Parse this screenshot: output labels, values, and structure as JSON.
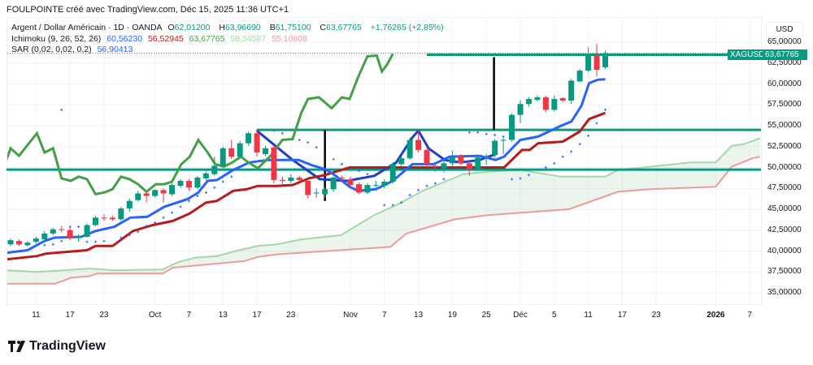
{
  "header": {
    "title": "FOULPOINTE créé avec TradingView.com, Déc 15, 2025 11:36 UTC+1"
  },
  "legend": {
    "symbol": "Argent / Dollar Américain · 1D · OANDA",
    "o_label": "O",
    "o": "62,01200",
    "h_label": "H",
    "h": "63,96690",
    "b_label": "B",
    "b": "61,75100",
    "c_label": "C",
    "c": "63,67765",
    "change": "+1,76265 (+2,85%)",
    "ichimoku_label": "Ichimoku (9, 26, 52, 26)",
    "ichimoku_values": [
      "60,56230",
      "56,52945",
      "63,67765",
      "58,54587",
      "55,10808"
    ],
    "sar_label": "SAR (0,02, 0,02, 0,2)",
    "sar_value": "56,90413"
  },
  "axis": {
    "currency": "USD",
    "price_ticks": [
      "65,00000",
      "62,50000",
      "60,00000",
      "57,50000",
      "55,00000",
      "52,50000",
      "50,00000",
      "47,50000",
      "45,00000",
      "42,50000",
      "40,00000",
      "37,50000",
      "35,00000"
    ],
    "time_ticks": [
      {
        "label": "11",
        "bar": 3
      },
      {
        "label": "17",
        "bar": 7
      },
      {
        "label": "23",
        "bar": 11
      },
      {
        "label": "Oct",
        "bar": 17
      },
      {
        "label": "7",
        "bar": 21
      },
      {
        "label": "13",
        "bar": 25
      },
      {
        "label": "17",
        "bar": 29
      },
      {
        "label": "23",
        "bar": 33
      },
      {
        "label": "Nov",
        "bar": 40
      },
      {
        "label": "7",
        "bar": 44
      },
      {
        "label": "13",
        "bar": 48
      },
      {
        "label": "19",
        "bar": 52
      },
      {
        "label": "25",
        "bar": 56
      },
      {
        "label": "Déc",
        "bar": 60
      },
      {
        "label": "5",
        "bar": 64
      },
      {
        "label": "11",
        "bar": 68
      },
      {
        "label": "17",
        "bar": 72
      },
      {
        "label": "23",
        "bar": 76
      },
      {
        "label": "2026",
        "bar": 83
      },
      {
        "label": "7",
        "bar": 87
      }
    ],
    "symbol_tag": "XAGUSD",
    "last_price": "63,67765"
  },
  "colors": {
    "up": "#089981",
    "down": "#f23645",
    "tenkan": "#2962ff",
    "kijun": "#b71c1c",
    "chikou": "#43a047",
    "spanA": "#a5d6a7",
    "spanB": "#ef9a9a",
    "drawing": "#089981",
    "arc": "#1e40c8",
    "sar": "#2962ff"
  },
  "chart_data": {
    "type": "candlestick",
    "ylim": [
      33.8,
      66.5
    ],
    "last_close": 63.67765,
    "candles_ohlc": [
      [
        40.8,
        41.5,
        40.6,
        41.3
      ],
      [
        41.2,
        41.4,
        40.6,
        40.8
      ],
      [
        40.7,
        41.2,
        40.5,
        41.0
      ],
      [
        41.1,
        41.7,
        40.9,
        41.5
      ],
      [
        41.4,
        42.4,
        41.2,
        42.1
      ],
      [
        42.1,
        42.8,
        41.9,
        42.6
      ],
      [
        42.6,
        43.0,
        42.2,
        42.5
      ],
      [
        42.5,
        42.8,
        41.3,
        41.6
      ],
      [
        41.6,
        42.0,
        41.1,
        41.7
      ],
      [
        41.7,
        43.3,
        41.6,
        43.1
      ],
      [
        43.1,
        44.2,
        43.0,
        44.0
      ],
      [
        44.0,
        44.4,
        43.6,
        43.9
      ],
      [
        44.0,
        44.2,
        43.6,
        43.8
      ],
      [
        43.8,
        45.3,
        43.6,
        45.1
      ],
      [
        45.1,
        46.3,
        44.7,
        46.0
      ],
      [
        46.1,
        47.2,
        45.9,
        46.9
      ],
      [
        46.9,
        47.1,
        45.8,
        46.6
      ],
      [
        46.6,
        47.4,
        46.4,
        47.3
      ],
      [
        47.3,
        47.5,
        45.8,
        46.9
      ],
      [
        46.8,
        48.1,
        46.6,
        47.9
      ],
      [
        47.8,
        48.6,
        47.6,
        48.4
      ],
      [
        48.4,
        48.6,
        47.2,
        47.6
      ],
      [
        47.6,
        49.0,
        47.4,
        48.8
      ],
      [
        48.7,
        49.5,
        48.5,
        49.3
      ],
      [
        49.2,
        51.3,
        49.0,
        50.2
      ],
      [
        50.2,
        52.5,
        50.0,
        52.3
      ],
      [
        52.3,
        53.3,
        51.0,
        51.3
      ],
      [
        51.3,
        53.2,
        51.1,
        52.9
      ],
      [
        52.9,
        54.3,
        52.6,
        54.1
      ],
      [
        54.1,
        54.5,
        51.3,
        51.8
      ],
      [
        51.6,
        52.6,
        51.4,
        52.3
      ],
      [
        52.4,
        52.6,
        48.1,
        48.5
      ],
      [
        48.5,
        48.9,
        47.9,
        48.4
      ],
      [
        48.4,
        49.2,
        48.1,
        48.8
      ],
      [
        48.8,
        49.0,
        48.3,
        48.5
      ],
      [
        48.4,
        48.6,
        46.3,
        46.7
      ],
      [
        46.9,
        47.5,
        46.4,
        47.0
      ],
      [
        46.8,
        47.6,
        46.3,
        47.4
      ],
      [
        47.4,
        48.9,
        47.1,
        48.8
      ],
      [
        48.8,
        49.0,
        48.4,
        48.7
      ],
      [
        48.6,
        48.9,
        47.7,
        47.9
      ],
      [
        48.0,
        48.2,
        46.8,
        47.0
      ],
      [
        47.0,
        48.1,
        46.8,
        47.9
      ],
      [
        47.8,
        48.4,
        47.6,
        47.9
      ],
      [
        47.8,
        48.6,
        47.5,
        48.3
      ],
      [
        48.3,
        50.6,
        48.1,
        50.4
      ],
      [
        50.4,
        51.3,
        50.1,
        51.1
      ],
      [
        51.1,
        53.6,
        50.9,
        53.3
      ],
      [
        53.3,
        54.4,
        51.8,
        52.1
      ],
      [
        52.1,
        52.4,
        50.0,
        50.4
      ],
      [
        50.2,
        50.6,
        49.5,
        50.1
      ],
      [
        49.9,
        50.8,
        49.4,
        50.5
      ],
      [
        50.5,
        52.0,
        50.2,
        51.2
      ],
      [
        51.4,
        51.6,
        50.3,
        50.5
      ],
      [
        50.5,
        50.8,
        49.0,
        49.8
      ],
      [
        49.8,
        51.4,
        49.6,
        51.2
      ],
      [
        51.2,
        51.6,
        50.3,
        51.3
      ],
      [
        51.5,
        53.4,
        51.2,
        53.2
      ],
      [
        53.2,
        53.6,
        51.6,
        53.3
      ],
      [
        53.3,
        56.5,
        53.1,
        56.3
      ],
      [
        56.3,
        58.1,
        55.3,
        57.6
      ],
      [
        57.6,
        58.4,
        57.3,
        58.2
      ],
      [
        58.1,
        58.6,
        57.9,
        58.4
      ],
      [
        58.4,
        58.6,
        56.6,
        56.9
      ],
      [
        56.9,
        58.6,
        56.7,
        58.2
      ],
      [
        58.3,
        58.4,
        57.8,
        58.0
      ],
      [
        58.0,
        60.6,
        57.6,
        60.4
      ],
      [
        60.3,
        61.8,
        60.2,
        61.6
      ],
      [
        61.6,
        64.4,
        61.4,
        63.4
      ],
      [
        63.4,
        64.8,
        60.9,
        61.7
      ],
      [
        62.0,
        64.0,
        61.8,
        63.7
      ]
    ],
    "tenkan": [
      [
        -0.5,
        39.8
      ],
      [
        2,
        40.1
      ],
      [
        4,
        41.2
      ],
      [
        5.2,
        41.6
      ],
      [
        8.3,
        41.7
      ],
      [
        10,
        42.4
      ],
      [
        12.2,
        42.9
      ],
      [
        14.1,
        44.0
      ],
      [
        16.1,
        44.1
      ],
      [
        18.1,
        45.3
      ],
      [
        20.8,
        46.2
      ],
      [
        22.1,
        47.0
      ],
      [
        23.2,
        48.4
      ],
      [
        24.3,
        48.5
      ],
      [
        26.2,
        49.7
      ],
      [
        28.1,
        50.6
      ],
      [
        30.3,
        50.9
      ],
      [
        33.9,
        50.9
      ],
      [
        35.4,
        50.3
      ],
      [
        37,
        49.8
      ],
      [
        38,
        49.2
      ],
      [
        39.9,
        47.7
      ],
      [
        40.9,
        47.2
      ],
      [
        43,
        47.4
      ],
      [
        45,
        48.4
      ],
      [
        47.3,
        50.4
      ],
      [
        49.8,
        50.4
      ],
      [
        51.7,
        51.3
      ],
      [
        55.2,
        51.4
      ],
      [
        57.1,
        50.9
      ],
      [
        58.1,
        51.3
      ],
      [
        60,
        53.3
      ],
      [
        62.1,
        53.7
      ],
      [
        64.8,
        55.0
      ],
      [
        66,
        55.5
      ],
      [
        67.2,
        57.4
      ],
      [
        68.1,
        60.1
      ],
      [
        69.1,
        60.5
      ],
      [
        70,
        60.56
      ]
    ],
    "kijun": [
      [
        -0.5,
        39.0
      ],
      [
        3.1,
        39.4
      ],
      [
        4.2,
        39.7
      ],
      [
        9,
        40.1
      ],
      [
        10,
        40.6
      ],
      [
        12,
        40.6
      ],
      [
        14.4,
        42.4
      ],
      [
        16.7,
        43.1
      ],
      [
        19.1,
        43.6
      ],
      [
        21.1,
        44.5
      ],
      [
        23,
        45.8
      ],
      [
        24.3,
        46.0
      ],
      [
        26.2,
        47.2
      ],
      [
        27.8,
        47.4
      ],
      [
        29.1,
        47.8
      ],
      [
        31.3,
        47.8
      ],
      [
        33.2,
        47.9
      ],
      [
        35.1,
        48.7
      ],
      [
        37,
        49.1
      ],
      [
        39.9,
        50.0
      ],
      [
        57.4,
        50.0
      ],
      [
        58.1,
        50.0
      ],
      [
        60.2,
        52.1
      ],
      [
        61.1,
        52.1
      ],
      [
        62.1,
        52.9
      ],
      [
        65,
        53.1
      ],
      [
        67,
        54.3
      ],
      [
        68.1,
        55.8
      ],
      [
        70,
        56.53
      ]
    ],
    "chikou": [
      [
        -0.5,
        50.9
      ],
      [
        0,
        52.3
      ],
      [
        1,
        51.4
      ],
      [
        3.1,
        54.1
      ],
      [
        4,
        51.8
      ],
      [
        5,
        52.3
      ],
      [
        6,
        48.7
      ],
      [
        7.1,
        48.4
      ],
      [
        8,
        48.9
      ],
      [
        9,
        48.6
      ],
      [
        10,
        46.8
      ],
      [
        11,
        47.0
      ],
      [
        12,
        47.4
      ],
      [
        13,
        48.9
      ],
      [
        14,
        48.6
      ],
      [
        15,
        48.0
      ],
      [
        16,
        47.1
      ],
      [
        17.1,
        48.0
      ],
      [
        18.1,
        48.0
      ],
      [
        19,
        48.3
      ],
      [
        20.1,
        50.4
      ],
      [
        21.1,
        51.3
      ],
      [
        22.1,
        53.3
      ],
      [
        23.2,
        51.8
      ],
      [
        24.1,
        50.4
      ],
      [
        25.1,
        50.1
      ],
      [
        26.1,
        50.6
      ],
      [
        27.1,
        51.3
      ],
      [
        28,
        50.6
      ],
      [
        29.1,
        49.9
      ],
      [
        30.6,
        51.4
      ],
      [
        32,
        53.3
      ],
      [
        33.2,
        53.4
      ],
      [
        34.2,
        56.5
      ],
      [
        35,
        58.2
      ],
      [
        36.3,
        58.4
      ],
      [
        37.8,
        57.1
      ],
      [
        39,
        58.4
      ],
      [
        39.9,
        58.2
      ],
      [
        40.9,
        60.8
      ],
      [
        42,
        63.3
      ],
      [
        43.1,
        63.4
      ],
      [
        43.7,
        61.5
      ],
      [
        44.3,
        62.3
      ],
      [
        45,
        63.6
      ]
    ],
    "span_a": [
      [
        -0.5,
        37.7
      ],
      [
        3.1,
        37.5
      ],
      [
        6.2,
        37.7
      ],
      [
        9.3,
        37.9
      ],
      [
        12.2,
        37.7
      ],
      [
        17.9,
        37.8
      ],
      [
        19.8,
        38.7
      ],
      [
        21.7,
        39.2
      ],
      [
        24.3,
        39.4
      ],
      [
        26.5,
        40.0
      ],
      [
        29.1,
        40.6
      ],
      [
        31.3,
        40.8
      ],
      [
        34.2,
        41.4
      ],
      [
        38.9,
        41.9
      ],
      [
        42.8,
        44.3
      ],
      [
        45.6,
        45.6
      ],
      [
        48.5,
        47.2
      ],
      [
        50.9,
        48.2
      ],
      [
        53.3,
        49.2
      ],
      [
        56.2,
        49.5
      ],
      [
        60,
        49.7
      ],
      [
        64.8,
        48.9
      ],
      [
        70,
        48.9
      ],
      [
        71.5,
        49.7
      ],
      [
        75.3,
        50.1
      ],
      [
        80.1,
        50.6
      ],
      [
        83,
        50.6
      ],
      [
        84.9,
        52.6
      ],
      [
        86.3,
        52.8
      ],
      [
        88.2,
        53.5
      ]
    ],
    "span_b": [
      [
        -0.5,
        36.1
      ],
      [
        5.2,
        36.1
      ],
      [
        6.1,
        36.4
      ],
      [
        7.1,
        36.8
      ],
      [
        9.3,
        37.0
      ],
      [
        10.2,
        37.3
      ],
      [
        17.9,
        37.3
      ],
      [
        19.1,
        38.0
      ],
      [
        21.1,
        38.2
      ],
      [
        24.3,
        38.5
      ],
      [
        27.5,
        38.8
      ],
      [
        29.1,
        39.3
      ],
      [
        31.3,
        39.6
      ],
      [
        41.8,
        40.3
      ],
      [
        44.7,
        40.5
      ],
      [
        46.6,
        42.1
      ],
      [
        52.3,
        43.8
      ],
      [
        56.2,
        44.3
      ],
      [
        65.7,
        45.0
      ],
      [
        71.5,
        47.1
      ],
      [
        75.3,
        47.4
      ],
      [
        83,
        47.7
      ],
      [
        84.9,
        50.1
      ],
      [
        87.3,
        51.1
      ],
      [
        88.2,
        51.3
      ]
    ],
    "sar": [
      [
        6,
        56.9
      ],
      [
        4,
        40.7
      ],
      [
        5,
        40.8
      ],
      [
        6,
        41.2
      ],
      [
        7,
        42.9
      ],
      [
        8,
        42.9
      ],
      [
        9,
        41.1
      ],
      [
        10,
        41.1
      ],
      [
        11,
        41.2
      ],
      [
        13,
        41.6
      ],
      [
        14,
        41.9
      ],
      [
        15,
        42.3
      ],
      [
        16,
        43.0
      ],
      [
        17,
        43.4
      ],
      [
        18,
        44.0
      ],
      [
        19,
        44.6
      ],
      [
        20,
        45.3
      ],
      [
        21,
        46.0
      ],
      [
        22,
        46.6
      ],
      [
        23,
        47.0
      ],
      [
        24,
        47.6
      ],
      [
        25,
        48.3
      ],
      [
        26,
        48.9
      ],
      [
        29,
        54.4
      ],
      [
        31,
        54.4
      ],
      [
        32,
        54.1
      ],
      [
        34,
        53.3
      ],
      [
        35,
        53.0
      ],
      [
        36,
        52.4
      ],
      [
        38,
        51.0
      ],
      [
        39,
        50.4
      ],
      [
        41,
        49.6
      ],
      [
        42,
        49.2
      ],
      [
        44,
        45.5
      ],
      [
        45,
        45.5
      ],
      [
        46,
        45.8
      ],
      [
        47,
        46.7
      ],
      [
        48,
        47.3
      ],
      [
        49,
        47.8
      ],
      [
        50,
        48.1
      ],
      [
        51,
        48.6
      ],
      [
        54,
        54.2
      ],
      [
        55,
        54.2
      ],
      [
        56,
        54.0
      ],
      [
        57,
        53.9
      ],
      [
        58,
        53.7
      ],
      [
        59,
        48.6
      ],
      [
        60,
        48.7
      ],
      [
        61,
        49.1
      ],
      [
        63,
        50.0
      ],
      [
        64,
        50.5
      ],
      [
        65,
        51.3
      ],
      [
        66,
        51.9
      ],
      [
        67,
        52.8
      ],
      [
        68,
        53.8
      ],
      [
        69,
        55.3
      ],
      [
        70,
        56.9
      ]
    ],
    "drawings": {
      "horizontal_levels": [
        {
          "price": 54.5,
          "from_bar": 29
        },
        {
          "price": 49.75,
          "from_bar": -0.5
        },
        {
          "price": 63.5,
          "from_bar": 49
        }
      ],
      "vertical_measures": [
        {
          "bar": 37,
          "from": 54.5,
          "to": 46.0
        },
        {
          "bar": 56.9,
          "from": 63.2,
          "to": 54.5
        }
      ],
      "arcs": [
        [
          [
            29,
            54.4
          ],
          [
            33.2,
            50.9
          ],
          [
            36.4,
            48.6
          ],
          [
            39.6,
            48.4
          ],
          [
            42.8,
            49.0
          ],
          [
            45.4,
            50.6
          ],
          [
            47.3,
            53.6
          ],
          [
            48,
            54.4
          ]
        ],
        [
          [
            48,
            54.4
          ],
          [
            49.2,
            52.3
          ],
          [
            51.1,
            50.9
          ],
          [
            53,
            50.6
          ],
          [
            55.2,
            50.9
          ],
          [
            57.1,
            51.6
          ]
        ]
      ]
    }
  }
}
